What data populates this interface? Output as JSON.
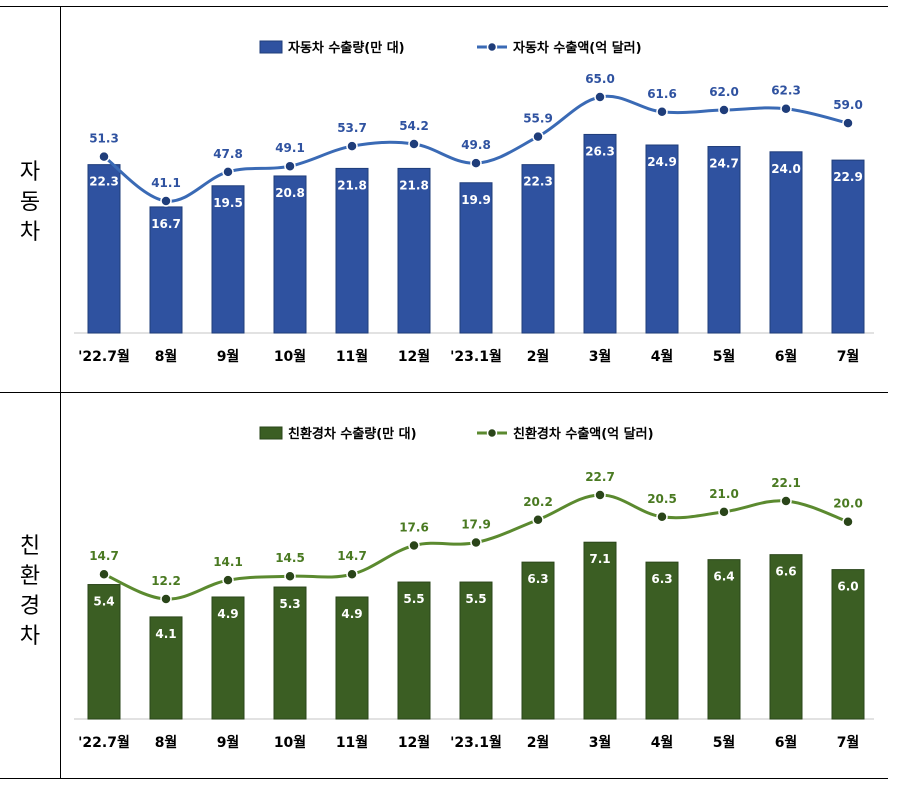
{
  "row_labels": [
    {
      "chars": [
        "자",
        "동",
        "차"
      ]
    },
    {
      "chars": [
        "친",
        "환",
        "경",
        "차"
      ]
    }
  ],
  "chart_data": [
    {
      "type": "bar",
      "categories": [
        "'22.7월",
        "8월",
        "9월",
        "10월",
        "11월",
        "12월",
        "'23.1월",
        "2월",
        "3월",
        "4월",
        "5월",
        "6월",
        "7월"
      ],
      "series": [
        {
          "name": "자동차 수출량(만 대)",
          "kind": "bar",
          "color": "#2f52a0",
          "values": [
            22.3,
            16.7,
            19.5,
            20.8,
            21.8,
            21.8,
            19.9,
            22.3,
            26.3,
            24.9,
            24.7,
            24.0,
            22.9
          ]
        },
        {
          "name": "자동차 수출액(억 달러)",
          "kind": "line",
          "color": "#3a6ab5",
          "values": [
            51.3,
            41.1,
            47.8,
            49.1,
            53.7,
            54.2,
            49.8,
            55.9,
            65.0,
            61.6,
            62.0,
            62.3,
            59.0
          ]
        }
      ],
      "legend": "top-center",
      "grid": false
    },
    {
      "type": "bar",
      "categories": [
        "'22.7월",
        "8월",
        "9월",
        "10월",
        "11월",
        "12월",
        "'23.1월",
        "2월",
        "3월",
        "4월",
        "5월",
        "6월",
        "7월"
      ],
      "series": [
        {
          "name": "친환경차 수출량(만 대)",
          "kind": "bar",
          "color": "#3b5e23",
          "values": [
            5.4,
            4.1,
            4.9,
            5.3,
            4.9,
            5.5,
            5.5,
            6.3,
            7.1,
            6.3,
            6.4,
            6.6,
            6.0
          ]
        },
        {
          "name": "친환경차 수출액(억 달러)",
          "kind": "line",
          "color": "#5b8a2f",
          "values": [
            14.7,
            12.2,
            14.1,
            14.5,
            14.7,
            17.6,
            17.9,
            20.2,
            22.7,
            20.5,
            21.0,
            22.1,
            20.0
          ]
        }
      ],
      "legend": "top-center",
      "grid": false
    }
  ]
}
